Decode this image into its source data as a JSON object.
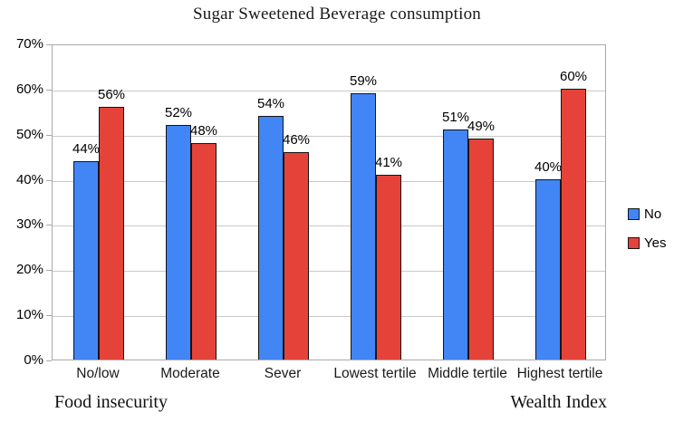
{
  "chart_data": {
    "type": "bar",
    "title": "Sugar Sweetened Beverage consumption",
    "categories": [
      "No/low",
      "Moderate",
      "Sever",
      "Lowest tertile",
      "Middle tertile",
      "Highest tertile"
    ],
    "series": [
      {
        "name": "No",
        "color": "#4285F4",
        "values": [
          44,
          52,
          54,
          59,
          51,
          40
        ],
        "labels": [
          "44%",
          "52%",
          "54%",
          "59%",
          "51%",
          "40%"
        ]
      },
      {
        "name": "Yes",
        "color": "#E5433A",
        "values": [
          56,
          48,
          46,
          41,
          49,
          60
        ],
        "labels": [
          "56%",
          "48%",
          "46%",
          "41%",
          "49%",
          "60%"
        ]
      }
    ],
    "y_ticks": [
      "0%",
      "10%",
      "20%",
      "30%",
      "40%",
      "50%",
      "60%",
      "70%"
    ],
    "ylim": [
      0,
      70
    ],
    "grid": true,
    "legend_position": "right",
    "group_labels": [
      {
        "label": "Food insecurity",
        "side": "left"
      },
      {
        "label": "Wealth Index",
        "side": "right"
      }
    ],
    "colors": {
      "gridline": "#c9c9c9",
      "plot_border": "#a9a9a9",
      "bar_outline": "#141414"
    }
  }
}
